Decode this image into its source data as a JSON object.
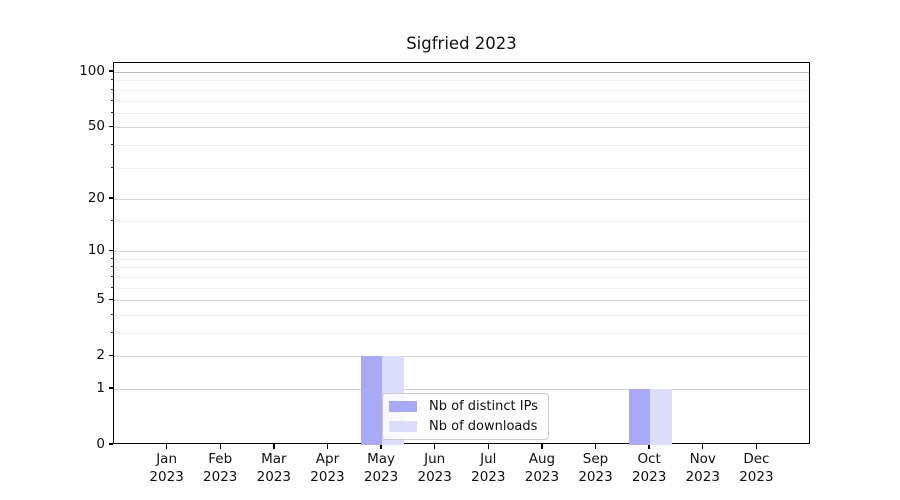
{
  "title": "Sigfried 2023",
  "chart_data": {
    "type": "bar",
    "title": "Sigfried 2023",
    "categories": [
      "Jan",
      "Feb",
      "Mar",
      "Apr",
      "May",
      "Jun",
      "Jul",
      "Aug",
      "Sep",
      "Oct",
      "Nov",
      "Dec"
    ],
    "category_year": "2023",
    "series": [
      {
        "name": "Nb of distinct IPs",
        "color": "#a9a9f6",
        "values": [
          0,
          0,
          0,
          0,
          2,
          0,
          0,
          0,
          0,
          1,
          0,
          0
        ]
      },
      {
        "name": "Nb of downloads",
        "color": "#dcdcfb",
        "values": [
          0,
          0,
          0,
          0,
          2,
          0,
          0,
          0,
          0,
          1,
          0,
          0
        ]
      }
    ],
    "yscale": "log1p",
    "ylim": [
      0,
      112
    ],
    "yticks": [
      0,
      1,
      2,
      5,
      10,
      20,
      50,
      100
    ],
    "minor_yticks": [
      3,
      4,
      6,
      7,
      8,
      9,
      15,
      30,
      40,
      60,
      70,
      80,
      90
    ],
    "grid": "horizontal",
    "legend_position": "lower center",
    "xlabel": "",
    "ylabel": ""
  },
  "colors": {
    "bar_distinct_ips": "#a9a9f6",
    "bar_downloads": "#dcdcfb",
    "grid_major": "#d2d2d2",
    "grid_strong": "#bdbdbd",
    "grid_minor": "#efefef",
    "axis": "#000000",
    "background": "#ffffff"
  }
}
